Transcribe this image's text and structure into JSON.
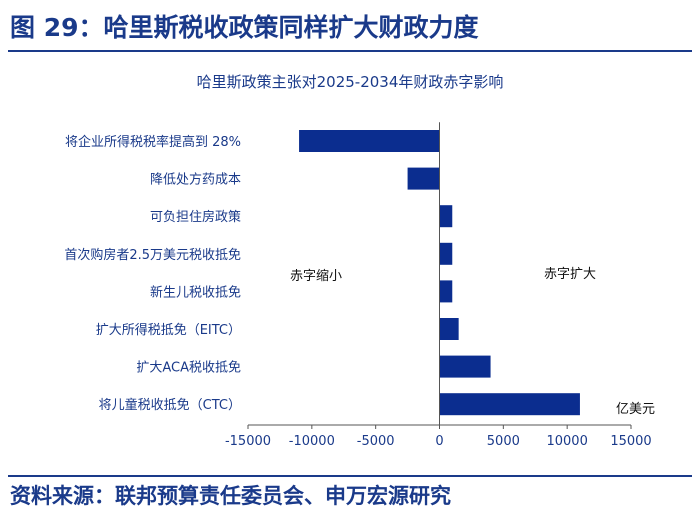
{
  "figure_title": "图 29：哈里斯税收政策同样扩大财政力度",
  "source": "资料来源：联邦预算责任委员会、申万宏源研究",
  "colors": {
    "accent": "#1a3a8a",
    "bar": "#0b2d8f"
  },
  "chart_data": {
    "type": "bar",
    "orientation": "horizontal",
    "title": "哈里斯政策主张对2025-2034年财政赤字影响",
    "categories": [
      "将企业所得税税率提高到 28%",
      "降低处方药成本",
      "可负担住房政策",
      "首次购房者2.5万美元税收抵免",
      "新生儿税收抵免",
      "扩大所得税抵免（EITC）",
      "扩大ACA税收抵免",
      "将儿童税收抵免（CTC）"
    ],
    "values": [
      -11000,
      -2500,
      1000,
      1000,
      1000,
      1500,
      4000,
      11000
    ],
    "xlim": [
      -15000,
      15000
    ],
    "xticks": [
      -15000,
      -10000,
      -5000,
      0,
      5000,
      10000,
      15000
    ],
    "tick_labels": [
      "-15000",
      "-10000",
      "-5000",
      "0",
      "5000",
      "10000",
      "15000"
    ],
    "annotations": {
      "left": "赤字缩小",
      "right": "赤字扩大",
      "unit": "亿美元"
    },
    "grid": false,
    "legend": "none"
  }
}
